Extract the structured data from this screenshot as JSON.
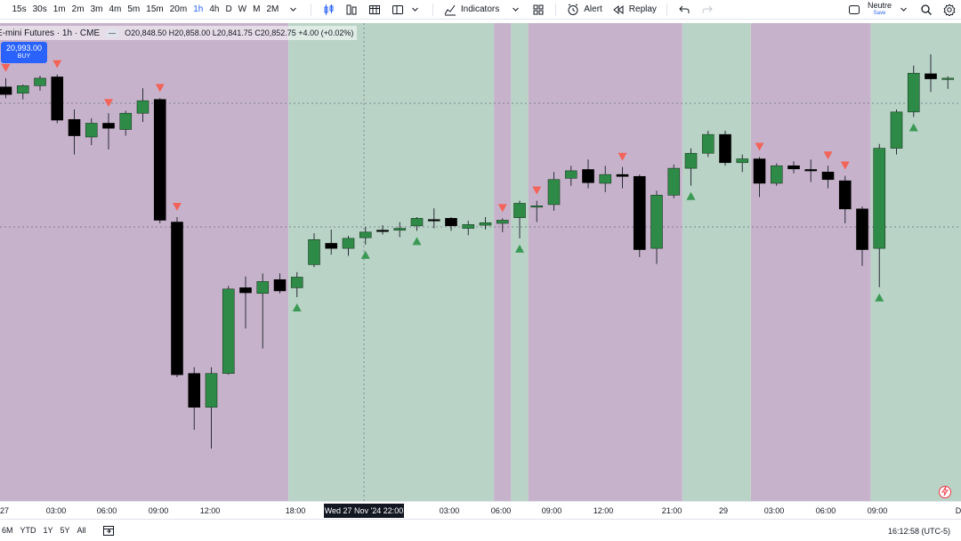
{
  "toolbar": {
    "timeframes": [
      "15s",
      "30s",
      "1m",
      "2m",
      "3m",
      "4m",
      "5m",
      "15m",
      "20m",
      "1h",
      "4h",
      "D",
      "W",
      "M",
      "2M"
    ],
    "active_timeframe": "1h",
    "indicators_label": "Indicators",
    "alert_label": "Alert",
    "replay_label": "Replay",
    "neutre_label": "Neutre",
    "save_label": "Save"
  },
  "legend": {
    "symbol": "E-mini Futures · 1h · CME",
    "ohlc": "O20,848.50 H20,858.00 L20,841.75 C20,852.75 +4.00 (+0.02%)"
  },
  "buy": {
    "price": "20,993.00",
    "label": "BUY"
  },
  "time_axis": {
    "labels": [
      "27",
      "03:00",
      "06:00",
      "09:00",
      "12:00",
      "18:00",
      "03:00",
      "06:00",
      "09:00",
      "12:00",
      "21:00",
      "29",
      "03:00",
      "06:00",
      "09:00",
      "D"
    ],
    "crosshair": "Wed 27 Nov '24  22:00"
  },
  "bottom": {
    "ranges": [
      "6M",
      "YTD",
      "1Y",
      "5Y",
      "All"
    ],
    "clock": "16:12:58 (UTC-5)"
  },
  "colors": {
    "up": "#2e8b47",
    "down": "#000000",
    "bg_pink": "#c7b2cb",
    "bg_green": "#b9d3c6",
    "arrow_up": "#3a9a55",
    "arrow_down": "#f2645a",
    "accent": "#2962ff"
  },
  "chart_data": {
    "type": "candlestick",
    "bars": [
      {
        "o": 20848,
        "h": 20862,
        "l": 20830,
        "c": 20836,
        "sig": "down"
      },
      {
        "o": 20838,
        "h": 20852,
        "l": 20828,
        "c": 20850,
        "sig": null
      },
      {
        "o": 20850,
        "h": 20866,
        "l": 20842,
        "c": 20862,
        "sig": null
      },
      {
        "o": 20864,
        "h": 20868,
        "l": 20790,
        "c": 20795,
        "sig": "down"
      },
      {
        "o": 20796,
        "h": 20812,
        "l": 20740,
        "c": 20770,
        "sig": null
      },
      {
        "o": 20768,
        "h": 20798,
        "l": 20755,
        "c": 20790,
        "sig": null
      },
      {
        "o": 20790,
        "h": 20806,
        "l": 20748,
        "c": 20782,
        "sig": "down"
      },
      {
        "o": 20780,
        "h": 20810,
        "l": 20770,
        "c": 20806,
        "sig": null
      },
      {
        "o": 20806,
        "h": 20846,
        "l": 20792,
        "c": 20826,
        "sig": null
      },
      {
        "o": 20828,
        "h": 20830,
        "l": 20630,
        "c": 20635,
        "sig": "down"
      },
      {
        "o": 20632,
        "h": 20640,
        "l": 20384,
        "c": 20388,
        "sig": "down"
      },
      {
        "o": 20390,
        "h": 20400,
        "l": 20300,
        "c": 20336,
        "sig": null
      },
      {
        "o": 20336,
        "h": 20400,
        "l": 20270,
        "c": 20390,
        "sig": null
      },
      {
        "o": 20390,
        "h": 20530,
        "l": 20388,
        "c": 20525,
        "sig": null
      },
      {
        "o": 20527,
        "h": 20545,
        "l": 20462,
        "c": 20519,
        "sig": null
      },
      {
        "o": 20518,
        "h": 20550,
        "l": 20430,
        "c": 20537,
        "sig": null
      },
      {
        "o": 20540,
        "h": 20550,
        "l": 20518,
        "c": 20522,
        "sig": null
      },
      {
        "o": 20527,
        "h": 20552,
        "l": 20512,
        "c": 20544,
        "sig": "up"
      },
      {
        "o": 20564,
        "h": 20614,
        "l": 20560,
        "c": 20604,
        "sig": null
      },
      {
        "o": 20598,
        "h": 20620,
        "l": 20580,
        "c": 20590,
        "sig": null
      },
      {
        "o": 20590,
        "h": 20610,
        "l": 20578,
        "c": 20606,
        "sig": null
      },
      {
        "o": 20607,
        "h": 20624,
        "l": 20596,
        "c": 20616,
        "sig": "up"
      },
      {
        "o": 20619,
        "h": 20627,
        "l": 20612,
        "c": 20617,
        "sig": null
      },
      {
        "o": 20619,
        "h": 20632,
        "l": 20608,
        "c": 20622,
        "sig": null
      },
      {
        "o": 20626,
        "h": 20640,
        "l": 20618,
        "c": 20638,
        "sig": "up"
      },
      {
        "o": 20636,
        "h": 20654,
        "l": 20622,
        "c": 20635,
        "sig": null
      },
      {
        "o": 20638,
        "h": 20640,
        "l": 20618,
        "c": 20626,
        "sig": null
      },
      {
        "o": 20622,
        "h": 20634,
        "l": 20611,
        "c": 20628,
        "sig": null
      },
      {
        "o": 20627,
        "h": 20640,
        "l": 20620,
        "c": 20631,
        "sig": null
      },
      {
        "o": 20630,
        "h": 20638,
        "l": 20616,
        "c": 20635,
        "sig": "down"
      },
      {
        "o": 20639,
        "h": 20666,
        "l": 20606,
        "c": 20662,
        "sig": "up"
      },
      {
        "o": 20656,
        "h": 20666,
        "l": 20632,
        "c": 20658,
        "sig": "down"
      },
      {
        "o": 20660,
        "h": 20712,
        "l": 20650,
        "c": 20700,
        "sig": null
      },
      {
        "o": 20702,
        "h": 20722,
        "l": 20690,
        "c": 20714,
        "sig": null
      },
      {
        "o": 20716,
        "h": 20732,
        "l": 20686,
        "c": 20695,
        "sig": null
      },
      {
        "o": 20694,
        "h": 20722,
        "l": 20680,
        "c": 20708,
        "sig": null
      },
      {
        "o": 20708,
        "h": 20720,
        "l": 20686,
        "c": 20705,
        "sig": "down"
      },
      {
        "o": 20705,
        "h": 20708,
        "l": 20576,
        "c": 20588,
        "sig": null
      },
      {
        "o": 20590,
        "h": 20682,
        "l": 20565,
        "c": 20675,
        "sig": null
      },
      {
        "o": 20675,
        "h": 20724,
        "l": 20670,
        "c": 20718,
        "sig": null
      },
      {
        "o": 20718,
        "h": 20750,
        "l": 20690,
        "c": 20742,
        "sig": "up"
      },
      {
        "o": 20742,
        "h": 20778,
        "l": 20736,
        "c": 20772,
        "sig": null
      },
      {
        "o": 20772,
        "h": 20778,
        "l": 20722,
        "c": 20727,
        "sig": null
      },
      {
        "o": 20727,
        "h": 20740,
        "l": 20712,
        "c": 20733,
        "sig": null
      },
      {
        "o": 20733,
        "h": 20736,
        "l": 20672,
        "c": 20694,
        "sig": "down"
      },
      {
        "o": 20694,
        "h": 20726,
        "l": 20690,
        "c": 20722,
        "sig": null
      },
      {
        "o": 20722,
        "h": 20729,
        "l": 20710,
        "c": 20717,
        "sig": null
      },
      {
        "o": 20716,
        "h": 20732,
        "l": 20696,
        "c": 20715,
        "sig": null
      },
      {
        "o": 20712,
        "h": 20722,
        "l": 20686,
        "c": 20700,
        "sig": "down"
      },
      {
        "o": 20698,
        "h": 20706,
        "l": 20630,
        "c": 20653,
        "sig": "down"
      },
      {
        "o": 20653,
        "h": 20657,
        "l": 20562,
        "c": 20588,
        "sig": null
      },
      {
        "o": 20590,
        "h": 20757,
        "l": 20528,
        "c": 20750,
        "sig": "up"
      },
      {
        "o": 20750,
        "h": 20812,
        "l": 20740,
        "c": 20808,
        "sig": null
      },
      {
        "o": 20808,
        "h": 20882,
        "l": 20800,
        "c": 20870,
        "sig": "up"
      },
      {
        "o": 20869,
        "h": 20900,
        "l": 20840,
        "c": 20861,
        "sig": null
      },
      {
        "o": 20860,
        "h": 20865,
        "l": 20845,
        "c": 20862,
        "sig": null
      }
    ],
    "background_zones": [
      {
        "from": 0,
        "to": 17,
        "color": "pink"
      },
      {
        "from": 17,
        "to": 29,
        "color": "green"
      },
      {
        "from": 29,
        "to": 30,
        "color": "pink"
      },
      {
        "from": 30,
        "to": 31,
        "color": "green"
      },
      {
        "from": 31,
        "to": 40,
        "color": "pink"
      },
      {
        "from": 40,
        "to": 44,
        "color": "green"
      },
      {
        "from": 44,
        "to": 51,
        "color": "pink"
      },
      {
        "from": 51,
        "to": 56,
        "color": "green"
      }
    ]
  }
}
